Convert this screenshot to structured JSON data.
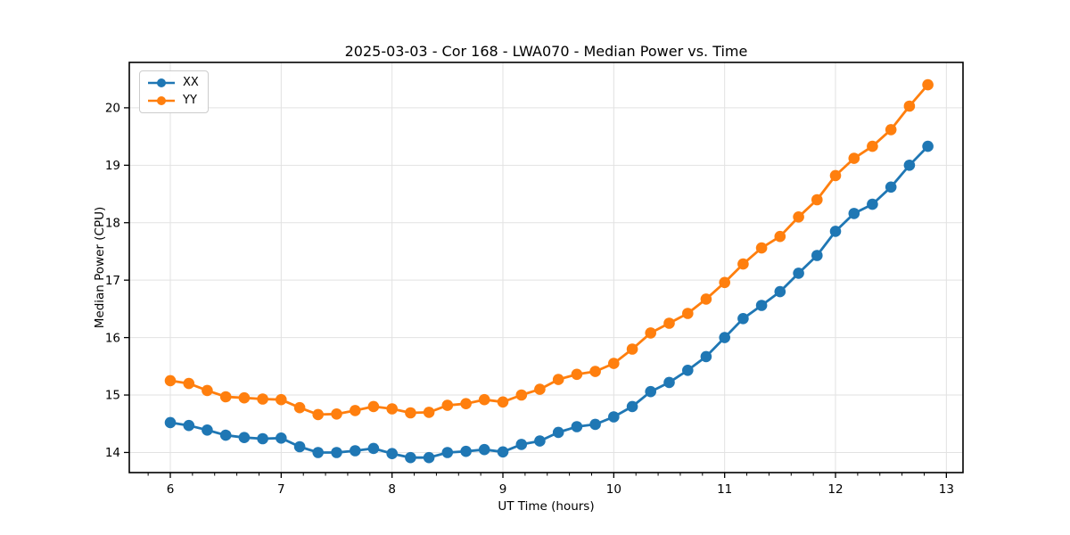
{
  "chart_data": {
    "type": "line",
    "title": "2025-03-03 - Cor 168 - LWA070 - Median Power vs. Time",
    "xlabel": "UT Time (hours)",
    "ylabel": "Median Power (CPU)",
    "xlim": [
      5.63,
      13.15
    ],
    "ylim": [
      13.65,
      20.79
    ],
    "x_ticks": [
      6,
      7,
      8,
      9,
      10,
      11,
      12,
      13
    ],
    "y_ticks": [
      14,
      15,
      16,
      17,
      18,
      19,
      20
    ],
    "x_minor_tick_step": 0.2,
    "grid": true,
    "grid_color": "#e2e2e2",
    "legend_position": "upper left",
    "marker": "circle",
    "x": [
      6.0,
      6.167,
      6.333,
      6.5,
      6.667,
      6.833,
      7.0,
      7.167,
      7.333,
      7.5,
      7.667,
      7.833,
      8.0,
      8.167,
      8.333,
      8.5,
      8.667,
      8.833,
      9.0,
      9.167,
      9.333,
      9.5,
      9.667,
      9.833,
      10.0,
      10.167,
      10.333,
      10.5,
      10.667,
      10.833,
      11.0,
      11.167,
      11.333,
      11.5,
      11.667,
      11.833,
      12.0,
      12.167,
      12.333,
      12.5,
      12.667,
      12.833
    ],
    "series": [
      {
        "name": "XX",
        "color": "#1f77b4",
        "values": [
          14.52,
          14.47,
          14.39,
          14.3,
          14.26,
          14.24,
          14.25,
          14.1,
          14.0,
          14.0,
          14.03,
          14.07,
          13.98,
          13.91,
          13.91,
          14.0,
          14.02,
          14.05,
          14.01,
          14.14,
          14.2,
          14.35,
          14.45,
          14.49,
          14.62,
          14.8,
          15.06,
          15.22,
          15.43,
          15.67,
          16.0,
          16.33,
          16.56,
          16.8,
          17.12,
          17.43,
          17.85,
          18.16,
          18.32,
          18.62,
          19.0,
          19.33
        ]
      },
      {
        "name": "YY",
        "color": "#ff7f0e",
        "values": [
          15.25,
          15.2,
          15.08,
          14.97,
          14.95,
          14.93,
          14.92,
          14.78,
          14.66,
          14.67,
          14.73,
          14.8,
          14.76,
          14.69,
          14.7,
          14.82,
          14.85,
          14.92,
          14.88,
          15.0,
          15.1,
          15.27,
          15.36,
          15.41,
          15.55,
          15.8,
          16.08,
          16.25,
          16.42,
          16.67,
          16.96,
          17.28,
          17.56,
          17.76,
          18.1,
          18.4,
          18.82,
          19.12,
          19.33,
          19.62,
          20.03,
          20.4
        ]
      }
    ]
  }
}
